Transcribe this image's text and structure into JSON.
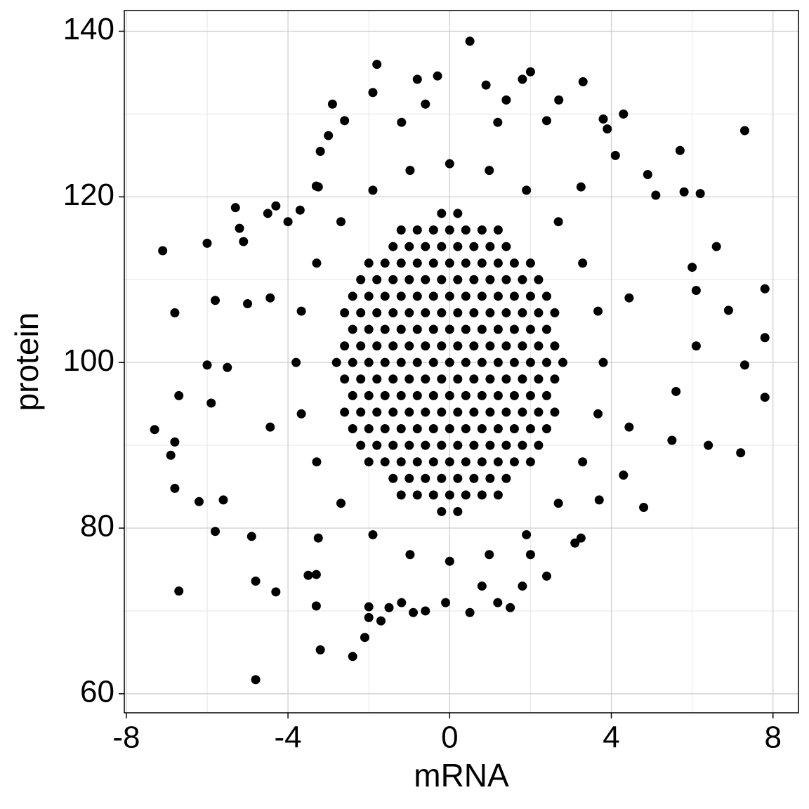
{
  "chart_data": {
    "type": "scatter",
    "x_label": "mRNA",
    "y_label": "protein",
    "xlim": [
      -8.05,
      8.63
    ],
    "ylim": [
      57.7,
      142.5
    ],
    "xticks": [
      -8,
      -4,
      0,
      4,
      8
    ],
    "yticks": [
      60,
      80,
      100,
      120,
      140
    ],
    "x_minor_ticks": [
      -6,
      -2,
      2,
      6
    ],
    "y_minor_ticks": [
      70,
      90,
      110,
      130
    ],
    "grid": true,
    "color": "#000000",
    "x": [
      -2.8,
      -2.4,
      -2,
      -1.6,
      -1.2,
      -0.8,
      -0.4,
      0,
      0.4,
      0.8,
      1.2,
      1.6,
      2,
      2.4,
      2.8,
      -2.6,
      -2.2,
      -1.8,
      -1.4,
      -1,
      -0.6,
      -0.2,
      0.2,
      0.6,
      1,
      1.4,
      1.8,
      2.2,
      2.6,
      -2.6,
      -2.2,
      -1.8,
      -1.4,
      -1,
      -0.6,
      -0.2,
      0.2,
      0.6,
      1,
      1.4,
      1.8,
      2.2,
      2.6,
      -2.4,
      -2,
      -1.6,
      -1.2,
      -0.8,
      -0.4,
      0,
      0.4,
      0.8,
      1.2,
      1.6,
      2,
      2.4,
      -2.4,
      -2,
      -1.6,
      -1.2,
      -0.8,
      -0.4,
      0,
      0.4,
      0.8,
      1.2,
      1.6,
      2,
      2.4,
      -2.6,
      -2.2,
      -1.8,
      -1.4,
      -1,
      -0.6,
      -0.2,
      0.2,
      0.6,
      1,
      1.4,
      1.8,
      2.2,
      2.6,
      -2.6,
      -2.2,
      -1.8,
      -1.4,
      -1,
      -0.6,
      -0.2,
      0.2,
      0.6,
      1,
      1.4,
      1.8,
      2.2,
      2.6,
      -2.4,
      -2,
      -1.6,
      -1.2,
      -0.8,
      -0.4,
      0,
      0.4,
      0.8,
      1.2,
      1.6,
      2,
      2.4,
      -2.4,
      -2,
      -1.6,
      -1.2,
      -0.8,
      -0.4,
      0,
      0.4,
      0.8,
      1.2,
      1.6,
      2,
      2.4,
      -2.2,
      -1.8,
      -1.4,
      -1,
      -0.6,
      -0.2,
      0.2,
      0.6,
      1,
      1.4,
      1.8,
      2.2,
      -2.2,
      -1.8,
      -1.4,
      -1,
      -0.6,
      -0.2,
      0.2,
      0.6,
      1,
      1.4,
      1.8,
      2.2,
      -2,
      -1.6,
      -1.2,
      -0.8,
      -0.4,
      0,
      0.4,
      0.8,
      1.2,
      1.6,
      2,
      -2,
      -1.6,
      -1.2,
      -0.8,
      -0.4,
      0,
      0.4,
      0.8,
      1.2,
      1.6,
      2,
      -1.4,
      -1,
      -0.6,
      -0.2,
      0.2,
      0.6,
      1,
      1.4,
      -1.4,
      -1,
      -0.6,
      -0.2,
      0.2,
      0.6,
      1,
      1.4,
      -1.2,
      -0.8,
      -0.4,
      0,
      0.4,
      0.8,
      1.2,
      -1.2,
      -0.8,
      -0.4,
      0,
      0.4,
      0.8,
      1.2,
      -0.2,
      0.2,
      -0.2,
      0.2,
      3.8,
      3.67,
      3.29,
      2.69,
      1.9,
      0.98,
      0,
      -0.98,
      -1.9,
      -2.69,
      -3.29,
      -3.67,
      -3.8,
      -3.67,
      -3.29,
      -2.69,
      -1.9,
      -0.98,
      0,
      0.98,
      1.9,
      2.69,
      3.29,
      3.67,
      4.44,
      3.25,
      1.19,
      -1.19,
      -3.25,
      -4.44,
      -4.44,
      -3.25,
      -1.19,
      1.19,
      3.25,
      4.44,
      -7.1,
      -7.3,
      -6.8,
      -6.9,
      -6.8,
      -6.7,
      -6.8,
      -6.7,
      -6.2,
      -6.0,
      -6.0,
      -5.9,
      -5.8,
      -5.8,
      -5.6,
      -5.5,
      -5.3,
      -5.2,
      -5.1,
      -5.0,
      -4.8,
      -4.8,
      -4.9,
      -4.5,
      -4.3,
      -4.0,
      -3.7,
      -3.3,
      -3.2,
      -3.0,
      -2.9,
      -2.6,
      -3.2,
      -2.4,
      -2.1,
      -2.0,
      -1.7,
      -1.8,
      -1.9,
      -0.8,
      -0.6,
      0.5,
      -0.3,
      0.9,
      2.0,
      3.3,
      5.7,
      6.2,
      7.3,
      7.8,
      7.8,
      7.8,
      7.2,
      7.3,
      6.9,
      6.6,
      6.4,
      5.5,
      5.6,
      4.8,
      4.3,
      3.7,
      3.1,
      2.4,
      2.0,
      1.5,
      0.5,
      1.8,
      0.8,
      -0.1,
      -0.6,
      -0.9,
      -1.5,
      -2.0,
      -3.3,
      -3.3,
      -4.3,
      -3.5,
      6.1,
      6.1,
      6.0,
      5.8,
      4.9,
      5.1,
      4.1,
      3.9,
      2.4,
      1.4,
      2.7,
      3.8,
      4.3,
      1.8
    ],
    "values": [
      100,
      100,
      100,
      100,
      100,
      100,
      100,
      100,
      100,
      100,
      100,
      100,
      100,
      100,
      100,
      98,
      98,
      98,
      98,
      98,
      98,
      98,
      98,
      98,
      98,
      98,
      98,
      98,
      98,
      102,
      102,
      102,
      102,
      102,
      102,
      102,
      102,
      102,
      102,
      102,
      102,
      102,
      102,
      96,
      96,
      96,
      96,
      96,
      96,
      96,
      96,
      96,
      96,
      96,
      96,
      96,
      104,
      104,
      104,
      104,
      104,
      104,
      104,
      104,
      104,
      104,
      104,
      104,
      104,
      94,
      94,
      94,
      94,
      94,
      94,
      94,
      94,
      94,
      94,
      94,
      94,
      94,
      94,
      106,
      106,
      106,
      106,
      106,
      106,
      106,
      106,
      106,
      106,
      106,
      106,
      106,
      106,
      92,
      92,
      92,
      92,
      92,
      92,
      92,
      92,
      92,
      92,
      92,
      92,
      92,
      108,
      108,
      108,
      108,
      108,
      108,
      108,
      108,
      108,
      108,
      108,
      108,
      108,
      90,
      90,
      90,
      90,
      90,
      90,
      90,
      90,
      90,
      90,
      90,
      90,
      110,
      110,
      110,
      110,
      110,
      110,
      110,
      110,
      110,
      110,
      110,
      110,
      88,
      88,
      88,
      88,
      88,
      88,
      88,
      88,
      88,
      88,
      88,
      112,
      112,
      112,
      112,
      112,
      112,
      112,
      112,
      112,
      112,
      112,
      86,
      86,
      86,
      86,
      86,
      86,
      86,
      86,
      114,
      114,
      114,
      114,
      114,
      114,
      114,
      114,
      84,
      84,
      84,
      84,
      84,
      84,
      84,
      116,
      116,
      116,
      116,
      116,
      116,
      116,
      82,
      82,
      118,
      118,
      100,
      106.2,
      112,
      117,
      120.8,
      123.2,
      124,
      123.2,
      120.8,
      117,
      112,
      106.2,
      100,
      93.8,
      88,
      83,
      79.2,
      76.8,
      76,
      76.8,
      79.2,
      83,
      88,
      93.8,
      107.8,
      121.2,
      129,
      129,
      121.2,
      107.8,
      92.2,
      78.8,
      71,
      71,
      78.8,
      92.2,
      113.5,
      91.9,
      106,
      88.8,
      90.4,
      96,
      84.8,
      72.4,
      83.2,
      114.4,
      99.7,
      95.1,
      107.5,
      79.6,
      83.4,
      99.4,
      118.7,
      116.2,
      114.6,
      107.1,
      61.7,
      73.6,
      79,
      118,
      118.9,
      117,
      118.4,
      121.3,
      125.5,
      127.4,
      131.2,
      129.2,
      65.3,
      64.5,
      66.8,
      69.2,
      68.8,
      136,
      132.6,
      134.2,
      131.2,
      138.8,
      134.6,
      133.5,
      135.1,
      133.9,
      125.6,
      120.4,
      128,
      108.9,
      103,
      95.8,
      89.1,
      99.7,
      106.3,
      114,
      90,
      90.6,
      96.5,
      82.5,
      86.4,
      83.4,
      78.2,
      74.2,
      76.8,
      70.4,
      69.8,
      73,
      73,
      71,
      70,
      69.8,
      70.4,
      70.5,
      70.6,
      74.4,
      72.3,
      74.3,
      108.7,
      102,
      111.5,
      120.6,
      122.7,
      120.2,
      125,
      128.2,
      129.2,
      131.7,
      131.7,
      129.4,
      130,
      134.2
    ]
  }
}
